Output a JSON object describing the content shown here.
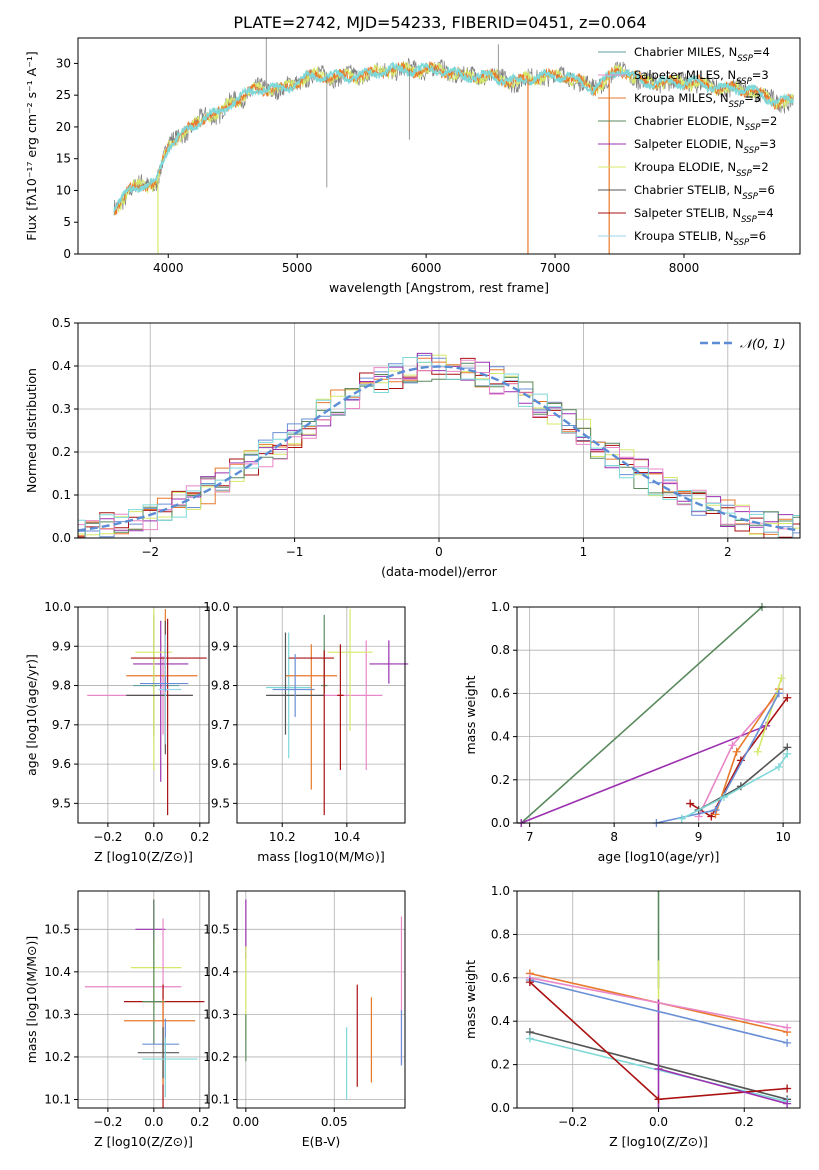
{
  "figure_title": "PLATE=2742, MJD=54233, FIBERID=0451, z=0.064",
  "colors": {
    "Chabrier MILES": "#5f9ea0",
    "Salpeter MILES": "#e987c9",
    "Kroupa MILES": "#e8792b",
    "Chabrier ELODIE": "#5a8a5e",
    "Salpeter ELODIE": "#9b30b0",
    "Kroupa ELODIE": "#d6e86a",
    "Chabrier STELIB": "#555555",
    "Salpeter STELIB": "#aa1111",
    "Kroupa STELIB": "#9cd2ea",
    "blue": "#6a8fd6",
    "cyan": "#7fd8d8"
  },
  "chart_data": [
    {
      "id": "spectrum",
      "type": "line",
      "title": "PLATE=2742, MJD=54233, FIBERID=0451, z=0.064",
      "xlabel": "wavelength [Angstrom, rest frame]",
      "ylabel": "Flux [fλ10⁻¹⁷ erg cm⁻² s⁻¹ A⁻¹]",
      "xlim": [
        3300,
        8900
      ],
      "ylim": [
        0,
        34
      ],
      "xticks": [
        4000,
        5000,
        6000,
        7000,
        8000
      ],
      "yticks": [
        0,
        5,
        10,
        15,
        20,
        25,
        30
      ],
      "grid": false,
      "legend_placement": "top-right",
      "legend": [
        "Chabrier MILES, N_SSP=4",
        "Salpeter MILES, N_SSP=3",
        "Kroupa MILES, N_SSP=3",
        "Chabrier ELODIE, N_SSP=2",
        "Salpeter ELODIE, N_SSP=3",
        "Kroupa ELODIE, N_SSP=2",
        "Chabrier STELIB, N_SSP=6",
        "Salpeter STELIB, N_SSP=4",
        "Kroupa STELIB, N_SSP=6"
      ],
      "legend_parts": [
        {
          "pre": "Chabrier MILES, N",
          "sub": "SSP",
          "post": "=4"
        },
        {
          "pre": "Salpeter MILES, N",
          "sub": "SSP",
          "post": "=3"
        },
        {
          "pre": "Kroupa MILES, N",
          "sub": "SSP",
          "post": "=3"
        },
        {
          "pre": "Chabrier ELODIE, N",
          "sub": "SSP",
          "post": "=2"
        },
        {
          "pre": "Salpeter ELODIE, N",
          "sub": "SSP",
          "post": "=3"
        },
        {
          "pre": "Kroupa ELODIE, N",
          "sub": "SSP",
          "post": "=2"
        },
        {
          "pre": "Chabrier STELIB, N",
          "sub": "SSP",
          "post": "=6"
        },
        {
          "pre": "Salpeter STELIB, N",
          "sub": "SSP",
          "post": "=4"
        },
        {
          "pre": "Kroupa STELIB, N",
          "sub": "SSP",
          "post": "=6"
        }
      ],
      "envelope": {
        "x": [
          3580,
          3700,
          3800,
          3900,
          3950,
          4000,
          4100,
          4200,
          4300,
          4400,
          4500,
          4700,
          4900,
          5100,
          5300,
          5500,
          5700,
          5900,
          6100,
          6300,
          6500,
          6700,
          6900,
          7100,
          7300,
          7500,
          7700,
          7900,
          8100,
          8300,
          8500,
          8700,
          8850
        ],
        "y": [
          7,
          10,
          11,
          11,
          14,
          17,
          19,
          20,
          22,
          22,
          24,
          26,
          26,
          28,
          28,
          28,
          29,
          29,
          29,
          28,
          28,
          27,
          28,
          28,
          26,
          29,
          27,
          27,
          27,
          26,
          26,
          24,
          24
        ]
      }
    },
    {
      "id": "residuals",
      "type": "line",
      "title": "",
      "xlabel": "(data-model)/error",
      "ylabel": "Normed distribution",
      "xlim": [
        -2.5,
        2.5
      ],
      "ylim": [
        0,
        0.5
      ],
      "xticks": [
        -2,
        -1,
        0,
        1,
        2
      ],
      "yticks": [
        0.0,
        0.1,
        0.2,
        0.3,
        0.4,
        0.5
      ],
      "grid": true,
      "legend_placement": "top-right",
      "legend": [
        "𝒩(0, 1)"
      ],
      "gaussian": {
        "mu": 0,
        "sigma": 1
      }
    },
    {
      "id": "age_vs_Z",
      "type": "scatter",
      "xlabel": "Z [log10(Z/Z⊙)]",
      "ylabel": "age [log10(age/yr)]",
      "xlim": [
        -0.33,
        0.24
      ],
      "ylim": [
        9.45,
        10.0
      ],
      "xticks": [
        -0.2,
        0.0,
        0.2
      ],
      "yticks": [
        9.5,
        9.6,
        9.7,
        9.8,
        9.9,
        10.0
      ],
      "grid": true,
      "points": [
        {
          "x": 0.05,
          "y": 9.8,
          "xerr": [
            0.14,
            0.06
          ],
          "yerr": [
            0.1,
            0.09
          ],
          "series": "Chabrier MILES"
        },
        {
          "x": 0.04,
          "y": 9.775,
          "xerr": [
            0.33,
            0.12
          ],
          "yerr": [
            0.1,
            0.1
          ],
          "series": "Salpeter MILES"
        },
        {
          "x": 0.05,
          "y": 9.825,
          "xerr": [
            0.17,
            0.14
          ],
          "yerr": [
            0.18,
            0.17
          ],
          "series": "Kroupa MILES"
        },
        {
          "x": 0.0,
          "y": 9.8,
          "xerr": [
            0.01,
            0.01
          ],
          "yerr": [
            0.13,
            0.18
          ],
          "series": "Chabrier ELODIE"
        },
        {
          "x": 0.03,
          "y": 9.855,
          "xerr": [
            0.12,
            0.12
          ],
          "yerr": [
            0.3,
            0.11
          ],
          "series": "Salpeter ELODIE"
        },
        {
          "x": 0.0,
          "y": 9.885,
          "xerr": [
            0.08,
            0.08
          ],
          "yerr": [
            0.3,
            0.11
          ],
          "series": "Kroupa ELODIE"
        },
        {
          "x": 0.05,
          "y": 9.775,
          "xerr": [
            0.17,
            0.12
          ],
          "yerr": [
            0.15,
            0.19
          ],
          "series": "Chabrier STELIB"
        },
        {
          "x": 0.06,
          "y": 9.87,
          "xerr": [
            0.16,
            0.17
          ],
          "yerr": [
            0.4,
            0.1
          ],
          "series": "Salpeter STELIB"
        },
        {
          "x": 0.05,
          "y": 9.79,
          "xerr": [
            0.03,
            0.07
          ],
          "yerr": [
            0.14,
            0.14
          ],
          "series": "Kroupa STELIB"
        },
        {
          "x": 0.05,
          "y": 9.805,
          "xerr": [
            0.11,
            0.1
          ],
          "yerr": [
            0.02,
            0.02
          ],
          "series": "blue"
        }
      ]
    },
    {
      "id": "age_vs_mass",
      "type": "scatter",
      "xlabel": "mass [log10(M/M⊙)]",
      "ylabel": "",
      "xlim": [
        10.06,
        10.58
      ],
      "ylim": [
        9.45,
        10.0
      ],
      "xticks": [
        10.2,
        10.4
      ],
      "yticks": [
        9.5,
        9.6,
        9.7,
        9.8,
        9.9,
        10.0
      ],
      "grid": true,
      "points": [
        {
          "x": 10.22,
          "y": 9.795,
          "xerr": [
            0.07,
            0.07
          ],
          "yerr": [
            0.18,
            0.14
          ],
          "series": "cyan"
        },
        {
          "x": 10.46,
          "y": 9.775,
          "xerr": [
            0.14,
            0.05
          ],
          "yerr": [
            0.19,
            0.14
          ],
          "series": "Salpeter MILES"
        },
        {
          "x": 10.29,
          "y": 9.825,
          "xerr": [
            0.08,
            0.08
          ],
          "yerr": [
            0.29,
            0.08
          ],
          "series": "Kroupa MILES"
        },
        {
          "x": 10.33,
          "y": 9.8,
          "xerr": [
            0.01,
            0.01
          ],
          "yerr": [
            0.02,
            0.18
          ],
          "series": "Chabrier ELODIE"
        },
        {
          "x": 10.53,
          "y": 9.855,
          "xerr": [
            0.06,
            0.06
          ],
          "yerr": [
            0.05,
            0.06
          ],
          "series": "Salpeter ELODIE"
        },
        {
          "x": 10.41,
          "y": 9.885,
          "xerr": [
            0.07,
            0.07
          ],
          "yerr": [
            0.2,
            0.11
          ],
          "series": "Kroupa ELODIE"
        },
        {
          "x": 10.21,
          "y": 9.775,
          "xerr": [
            0.06,
            0.12
          ],
          "yerr": [
            0.1,
            0.16
          ],
          "series": "Chabrier STELIB"
        },
        {
          "x": 10.33,
          "y": 9.87,
          "xerr": [
            0.11,
            0.03
          ],
          "yerr": [
            0.4,
            0.02
          ],
          "series": "Salpeter STELIB"
        },
        {
          "x": 10.24,
          "y": 9.79,
          "xerr": [
            0.07,
            0.06
          ],
          "yerr": [
            0.07,
            0.09
          ],
          "series": "blue"
        },
        {
          "x": 10.38,
          "y": 9.775,
          "xerr": [
            0.01,
            0.01
          ],
          "yerr": [
            0.19,
            0.13
          ],
          "series": "Salpeter STELIB"
        }
      ]
    },
    {
      "id": "weight_vs_age",
      "type": "line",
      "xlabel": "age [log10(age/yr)]",
      "ylabel": "mass weight",
      "xlim": [
        6.85,
        10.2
      ],
      "ylim": [
        0,
        1.0
      ],
      "xticks": [
        7,
        8,
        9,
        10
      ],
      "yticks": [
        0.0,
        0.2,
        0.4,
        0.6,
        0.8,
        1.0
      ],
      "grid": true,
      "series": [
        {
          "name": "Chabrier ELODIE",
          "x": [
            6.9,
            9.75
          ],
          "y": [
            0.0,
            1.0
          ]
        },
        {
          "name": "Salpeter ELODIE",
          "x": [
            6.9,
            9.8
          ],
          "y": [
            0.0,
            0.45
          ]
        },
        {
          "name": "Salpeter STELIB",
          "x": [
            8.9,
            9.15,
            9.5,
            10.05
          ],
          "y": [
            0.09,
            0.03,
            0.29,
            0.58
          ]
        },
        {
          "name": "Salpeter MILES",
          "x": [
            9.0,
            9.4,
            9.95
          ],
          "y": [
            0.03,
            0.36,
            0.6
          ]
        },
        {
          "name": "Kroupa MILES",
          "x": [
            9.2,
            9.45,
            9.95
          ],
          "y": [
            0.04,
            0.33,
            0.62
          ]
        },
        {
          "name": "Kroupa ELODIE",
          "x": [
            9.7,
            9.98
          ],
          "y": [
            0.33,
            0.67
          ]
        },
        {
          "name": "blue",
          "x": [
            8.5,
            9.2,
            9.95
          ],
          "y": [
            0.0,
            0.06,
            0.6
          ]
        },
        {
          "name": "Chabrier STELIB",
          "x": [
            9.0,
            9.5,
            10.05
          ],
          "y": [
            0.06,
            0.17,
            0.35
          ]
        },
        {
          "name": "cyan",
          "x": [
            8.8,
            9.3,
            9.95,
            10.05
          ],
          "y": [
            0.02,
            0.12,
            0.26,
            0.32
          ]
        }
      ]
    },
    {
      "id": "mass_vs_Z",
      "type": "scatter",
      "xlabel": "Z [log10(Z/Z⊙)]",
      "ylabel": "mass [log10(M/M⊙)]",
      "xlim": [
        -0.33,
        0.24
      ],
      "ylim": [
        10.08,
        10.59
      ],
      "xticks": [
        -0.2,
        0.0,
        0.2
      ],
      "yticks": [
        10.1,
        10.2,
        10.3,
        10.4,
        10.5
      ],
      "grid": true,
      "points": [
        {
          "x": 0.0,
          "y": 10.5,
          "xerr": [
            0.08,
            0.05
          ],
          "yerr": [
            0.07,
            0.07
          ],
          "series": "Salpeter ELODIE"
        },
        {
          "x": 0.0,
          "y": 10.41,
          "xerr": [
            0.1,
            0.12
          ],
          "yerr": [
            0.1,
            0.07
          ],
          "series": "Kroupa ELODIE"
        },
        {
          "x": 0.04,
          "y": 10.365,
          "xerr": [
            0.34,
            0.08
          ],
          "yerr": [
            0.05,
            0.16
          ],
          "series": "Salpeter MILES"
        },
        {
          "x": 0.04,
          "y": 10.33,
          "xerr": [
            0.17,
            0.18
          ],
          "yerr": [
            0.25,
            0.04
          ],
          "series": "Salpeter STELIB"
        },
        {
          "x": 0.0,
          "y": 10.33,
          "xerr": [
            0.05,
            0.05
          ],
          "yerr": [
            0.1,
            0.24
          ],
          "series": "Chabrier ELODIE"
        },
        {
          "x": 0.04,
          "y": 10.285,
          "xerr": [
            0.17,
            0.14
          ],
          "yerr": [
            0.15,
            0.05
          ],
          "series": "Kroupa MILES"
        },
        {
          "x": 0.05,
          "y": 10.23,
          "xerr": [
            0.1,
            0.06
          ],
          "yerr": [
            0.08,
            0.06
          ],
          "series": "blue"
        },
        {
          "x": 0.04,
          "y": 10.21,
          "xerr": [
            0.11,
            0.07
          ],
          "yerr": [
            0.06,
            0.06
          ],
          "series": "Chabrier STELIB"
        },
        {
          "x": 0.05,
          "y": 10.195,
          "xerr": [
            0.1,
            0.14
          ],
          "yerr": [
            0.09,
            0.05
          ],
          "series": "cyan"
        }
      ]
    },
    {
      "id": "mass_vs_EBV",
      "type": "scatter",
      "xlabel": "E(B-V)",
      "ylabel": "",
      "xlim": [
        -0.005,
        0.09
      ],
      "ylim": [
        10.08,
        10.59
      ],
      "xticks": [
        0.0,
        0.05
      ],
      "yticks": [
        10.1,
        10.2,
        10.3,
        10.4,
        10.5
      ],
      "grid": true,
      "points": [
        {
          "x": 0.0,
          "y": 10.5,
          "yerr": [
            0.07,
            0.07
          ],
          "series": "Salpeter ELODIE"
        },
        {
          "x": 0.0,
          "y": 10.36,
          "yerr": [
            0.12,
            0.1
          ],
          "series": "Kroupa ELODIE"
        },
        {
          "x": 0.0,
          "y": 10.25,
          "yerr": [
            0.06,
            0.05
          ],
          "series": "Chabrier ELODIE"
        },
        {
          "x": 0.057,
          "y": 10.18,
          "yerr": [
            0.08,
            0.09
          ],
          "series": "cyan"
        },
        {
          "x": 0.063,
          "y": 10.25,
          "yerr": [
            0.12,
            0.12
          ],
          "series": "Salpeter STELIB"
        },
        {
          "x": 0.071,
          "y": 10.23,
          "yerr": [
            0.09,
            0.11
          ],
          "series": "Kroupa MILES"
        },
        {
          "x": 0.088,
          "y": 10.35,
          "yerr": [
            0.17,
            0.18
          ],
          "series": "Salpeter MILES"
        },
        {
          "x": 0.088,
          "y": 10.23,
          "yerr": [
            0.05,
            0.08
          ],
          "series": "blue"
        }
      ]
    },
    {
      "id": "weight_vs_Z",
      "type": "line",
      "xlabel": "Z [log10(Z/Z⊙)]",
      "ylabel": "mass weight",
      "xlim": [
        -0.33,
        0.33
      ],
      "ylim": [
        0,
        1.0
      ],
      "xticks": [
        -0.2,
        0.0,
        0.2
      ],
      "yticks": [
        0.0,
        0.2,
        0.4,
        0.6,
        0.8,
        1.0
      ],
      "grid": true,
      "series": [
        {
          "name": "Kroupa MILES",
          "x": [
            -0.3,
            0.3
          ],
          "y": [
            0.62,
            0.35
          ]
        },
        {
          "name": "Salpeter MILES",
          "x": [
            -0.3,
            0.3
          ],
          "y": [
            0.6,
            0.37
          ]
        },
        {
          "name": "blue",
          "x": [
            -0.3,
            0.3
          ],
          "y": [
            0.59,
            0.3
          ]
        },
        {
          "name": "Chabrier STELIB",
          "x": [
            -0.3,
            0.3
          ],
          "y": [
            0.35,
            0.04
          ]
        },
        {
          "name": "cyan",
          "x": [
            -0.3,
            0.3
          ],
          "y": [
            0.32,
            0.03
          ]
        },
        {
          "name": "Salpeter STELIB",
          "x": [
            -0.3,
            0.0,
            0.3
          ],
          "y": [
            0.58,
            0.04,
            0.09
          ]
        },
        {
          "name": "Salpeter ELODIE",
          "x": [
            0.0,
            0.3
          ],
          "y": [
            0.18,
            0.02
          ]
        }
      ],
      "vertical_segments": [
        {
          "x": 0.0,
          "y": [
            0.55,
            1.0
          ],
          "series": "Chabrier ELODIE"
        },
        {
          "x": 0.0,
          "y": [
            0.32,
            0.68
          ],
          "series": "Kroupa ELODIE"
        },
        {
          "x": 0.0,
          "y": [
            0.0,
            0.5
          ],
          "series": "Salpeter ELODIE"
        }
      ]
    }
  ]
}
